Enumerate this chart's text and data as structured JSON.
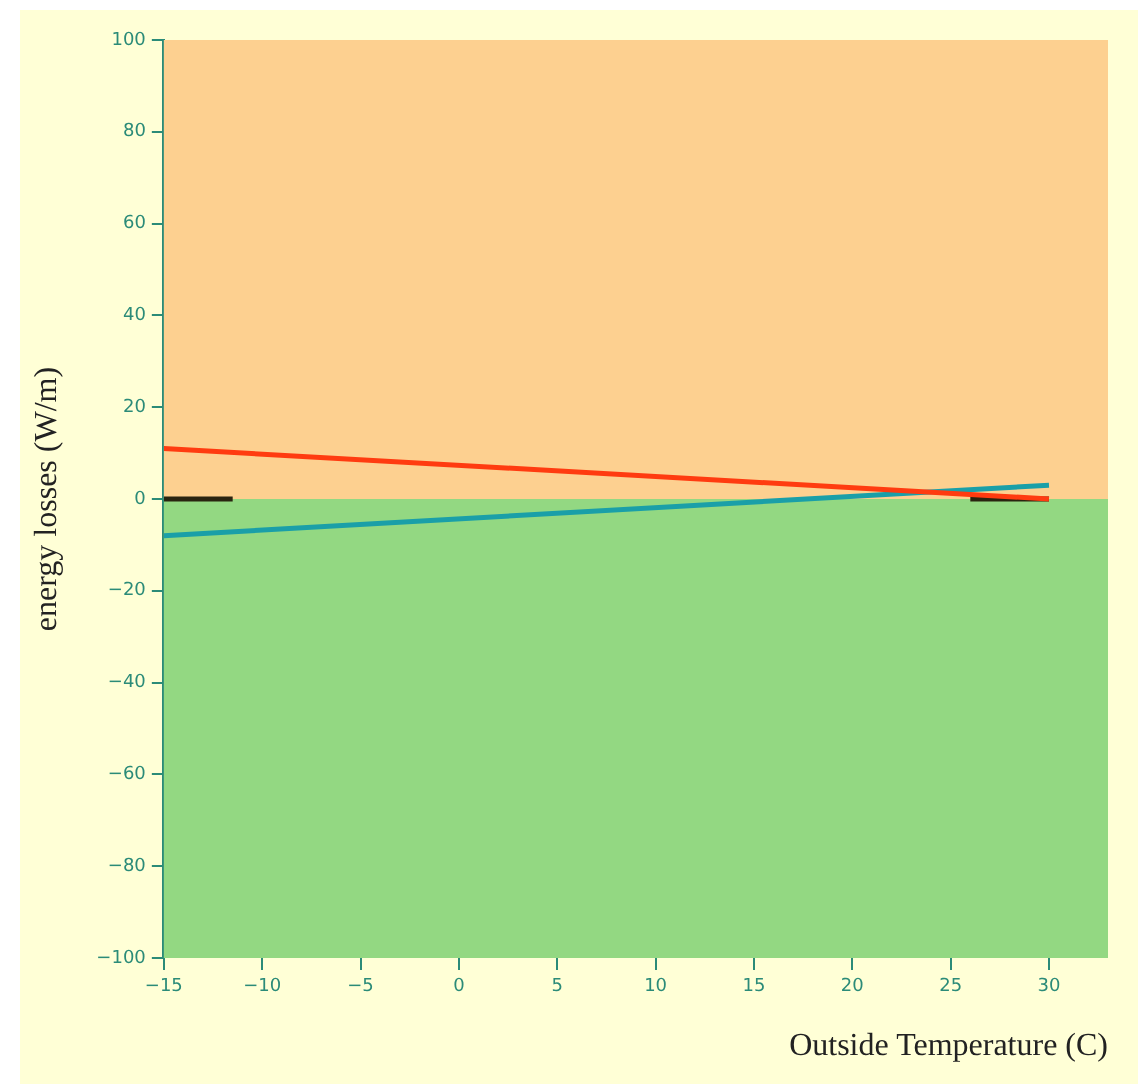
{
  "chart_data": {
    "type": "line",
    "xlabel": "Outside Temperature (C)",
    "ylabel": "energy losses (W/m)",
    "xlim": [
      -15,
      33
    ],
    "xticks": [
      -15,
      -10,
      -5,
      0,
      5,
      10,
      15,
      20,
      25,
      30
    ],
    "ylim": [
      -100,
      100
    ],
    "yticks": [
      -100,
      -80,
      -60,
      -40,
      -20,
      0,
      20,
      40,
      60,
      80,
      100
    ],
    "bands": [
      {
        "axis": "y",
        "from": 0,
        "to": 100,
        "color": "#fdd090"
      },
      {
        "axis": "y",
        "from": -100,
        "to": 0,
        "color": "#93d882"
      }
    ],
    "series": [
      {
        "color": "#ff3b10",
        "x": [
          -15,
          26,
          30
        ],
        "values": [
          11,
          1,
          0
        ]
      },
      {
        "color": "#1a9fa8",
        "x": [
          -15,
          30
        ],
        "values": [
          -8,
          3
        ]
      },
      {
        "color": "#2a2410",
        "x": [
          -15,
          -11.5,
          0,
          26,
          30
        ],
        "values": [
          0,
          0,
          null,
          0,
          0
        ]
      }
    ],
    "grid": false,
    "legend": false,
    "marker": "none",
    "line_style": "solid"
  }
}
